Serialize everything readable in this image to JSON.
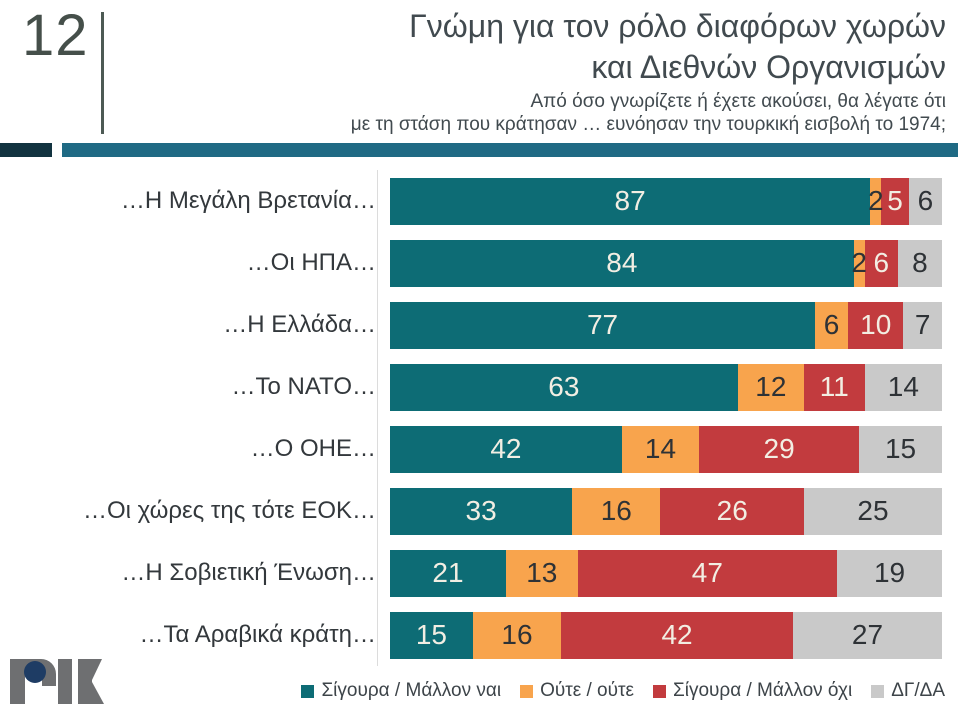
{
  "slide": {
    "number": "12",
    "title_line1": "Γνώμη για τον ρόλο διαφόρων χωρών",
    "title_line2": "και Διεθνών Οργανισμών",
    "subtitle_line1": "Από όσο γνωρίζετε ή έχετε ακούσει, θα λέγατε ότι",
    "subtitle_line2": "με τη στάση που κράτησαν … ευνόησαν την τουρκική εισβολή το 1974;",
    "logo_name": "RIK logo"
  },
  "colors": {
    "band_navy": "#123340",
    "band_teal": "#1f6a84",
    "series_yes": "#0d6c75",
    "series_neither": "#f8a44d",
    "series_no": "#c23b3e",
    "series_dk": "#c9c9c9",
    "value_text_light": "#f2eee3",
    "value_text_dark": "#2e3236",
    "logo_gray": "#6e6f71",
    "logo_navy": "#1e3c64"
  },
  "chart_data": {
    "type": "bar",
    "orientation": "horizontal",
    "stacked": true,
    "grid": false,
    "legend_position": "bottom",
    "xlim": [
      0,
      100
    ],
    "categories": [
      "…Η Μεγάλη Βρετανία…",
      "…Οι ΗΠΑ…",
      "…Η Ελλάδα…",
      "…Το ΝΑΤΟ…",
      "…Ο ΟΗΕ…",
      "…Οι χώρες της τότε ΕΟΚ…",
      "…Η Σοβιετική Ένωση…",
      "…Τα Αραβικά κράτη…"
    ],
    "series": [
      {
        "name": "Σίγουρα / Μάλλον ναι",
        "color": "#0d6c75",
        "value_text": "light",
        "values": [
          87,
          84,
          77,
          63,
          42,
          33,
          21,
          15
        ]
      },
      {
        "name": "Ούτε / ούτε",
        "color": "#f8a44d",
        "value_text": "dark",
        "values": [
          2,
          2,
          6,
          12,
          14,
          16,
          13,
          16
        ]
      },
      {
        "name": "Σίγουρα / Μάλλον όχι",
        "color": "#c23b3e",
        "value_text": "light",
        "values": [
          5,
          6,
          10,
          11,
          29,
          26,
          47,
          42
        ]
      },
      {
        "name": "ΔΓ/ΔΑ",
        "color": "#c9c9c9",
        "value_text": "dark",
        "values": [
          6,
          8,
          7,
          14,
          15,
          25,
          19,
          27
        ]
      }
    ]
  }
}
